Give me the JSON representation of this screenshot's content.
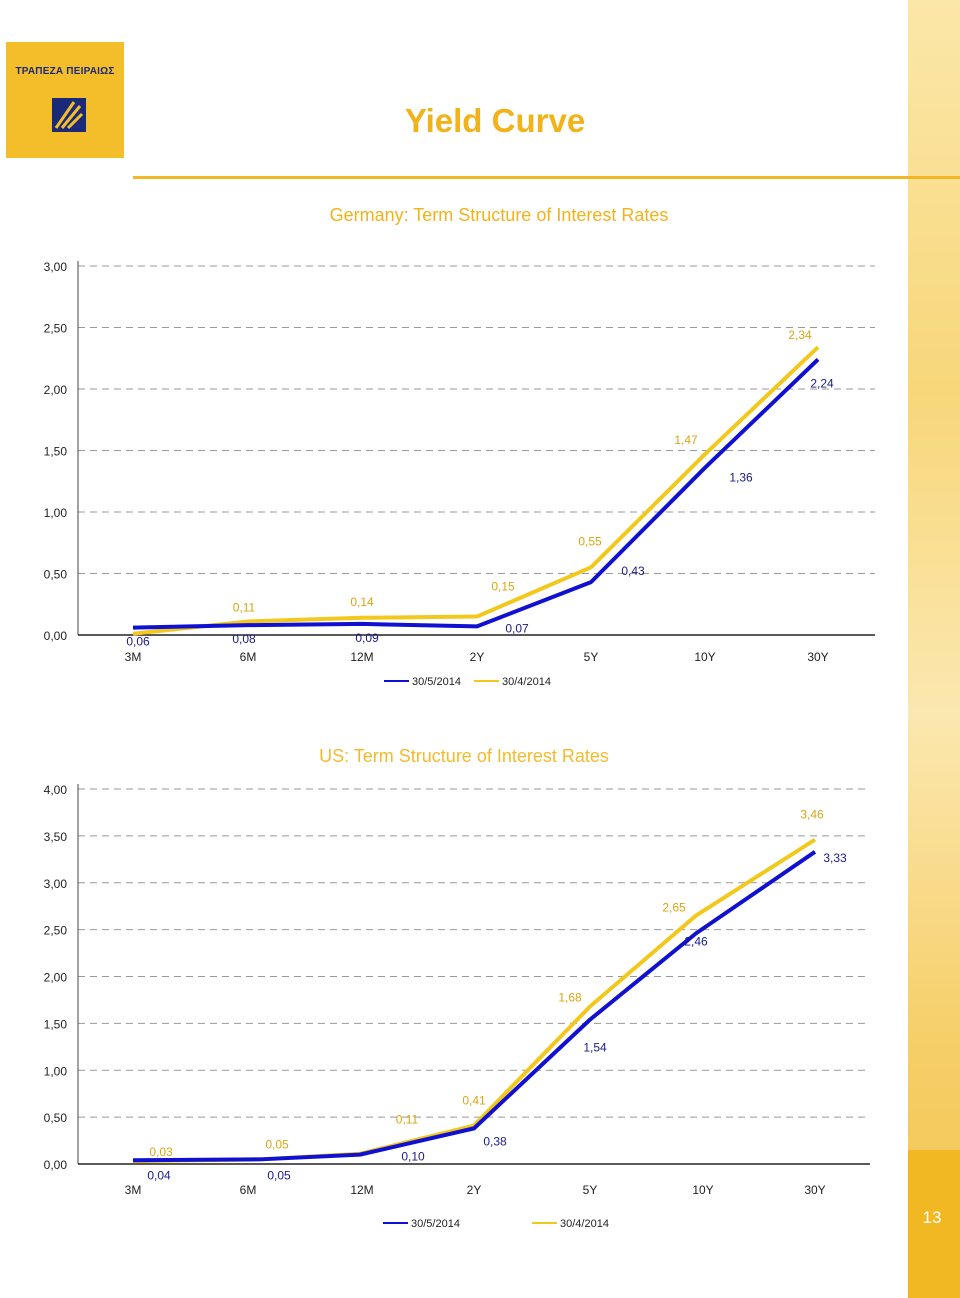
{
  "page": {
    "title": "Yield Curve",
    "page_number": "13",
    "logo_text": "ΤΡΑΠΕΖΑ ΠΕΙΡΑΙΩΣ"
  },
  "colors": {
    "series_30_5_2014": "#1010d0",
    "series_30_4_2014": "#f2c81d",
    "title_yellow": "#f2b31a",
    "grid": "#999999"
  },
  "chart_data": [
    {
      "type": "line",
      "title": "Germany: Term Structure of Interest Rates",
      "categories": [
        "3M",
        "6M",
        "12M",
        "2Y",
        "5Y",
        "10Y",
        "30Y"
      ],
      "ylim": [
        0,
        3
      ],
      "yticks": [
        "0,00",
        "0,50",
        "1,00",
        "1,50",
        "2,00",
        "2,50",
        "3,00"
      ],
      "ytick_values": [
        0,
        0.5,
        1,
        1.5,
        2,
        2.5,
        3
      ],
      "grid": true,
      "legend": "bottom-center",
      "series": [
        {
          "name": "30/5/2014",
          "values": [
            0.06,
            0.08,
            0.09,
            0.07,
            0.43,
            1.36,
            2.24
          ],
          "labels": [
            "0,06",
            "0,08",
            "0,09",
            "0,07",
            "0,43",
            "1,36",
            "2,24"
          ]
        },
        {
          "name": "30/4/2014",
          "values": [
            0.01,
            0.11,
            0.14,
            0.15,
            0.55,
            1.47,
            2.34
          ],
          "labels": [
            "",
            "0,11",
            "0,14",
            "0,15",
            "0,55",
            "1,47",
            "2,34"
          ]
        }
      ]
    },
    {
      "type": "line",
      "title": "US: Term Structure of Interest Rates",
      "categories": [
        "3M",
        "6M",
        "12M",
        "2Y",
        "5Y",
        "10Y",
        "30Y"
      ],
      "ylim": [
        0,
        4
      ],
      "yticks": [
        "0,00",
        "0,50",
        "1,00",
        "1,50",
        "2,00",
        "2,50",
        "3,00",
        "3,50",
        "4,00"
      ],
      "ytick_values": [
        0,
        0.5,
        1,
        1.5,
        2,
        2.5,
        3,
        3.5,
        4
      ],
      "grid": true,
      "legend": "bottom-center",
      "series": [
        {
          "name": "30/5/2014",
          "values": [
            0.04,
            0.05,
            0.1,
            0.38,
            1.54,
            2.46,
            3.33
          ],
          "labels": [
            "0,04",
            "0,05",
            "0,10",
            "0,38",
            "1,54",
            "2,46",
            "3,33"
          ]
        },
        {
          "name": "30/4/2014",
          "values": [
            0.03,
            0.05,
            0.11,
            0.41,
            1.68,
            2.65,
            3.46
          ],
          "labels": [
            "0,03",
            "0,05",
            "0,11",
            "0,41",
            "1,68",
            "2,65",
            "3,46"
          ]
        }
      ]
    }
  ]
}
